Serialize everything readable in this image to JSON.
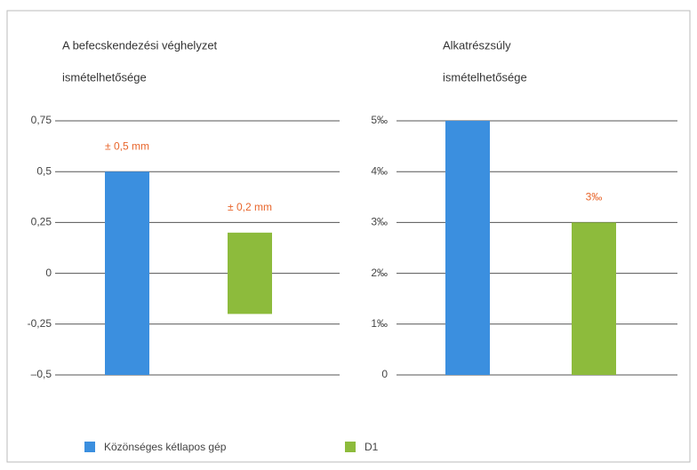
{
  "chart_data": [
    {
      "type": "bar",
      "symmetric": true,
      "title": [
        "A befecskendezési véghelyzet",
        "ismételhetősége"
      ],
      "series": [
        {
          "name": "Közönséges kétlapos gép",
          "color": "#3b8fdf",
          "values": [
            0.5
          ],
          "value_labels": [
            "± 0,5 mm"
          ]
        },
        {
          "name": "D1",
          "color": "#8dbb3c",
          "values": [
            0.2
          ],
          "value_labels": [
            "± 0,2 mm"
          ]
        }
      ],
      "ylim": [
        -0.5,
        0.75
      ],
      "yticks": [
        {
          "value": -0.5,
          "label": "–0,5"
        },
        {
          "value": -0.25,
          "label": "-0,25"
        },
        0,
        {
          "value": 0.25,
          "label": "0,25"
        },
        {
          "value": 0.5,
          "label": "0,5"
        },
        {
          "value": 0.75,
          "label": "0,75"
        }
      ],
      "grid": true
    },
    {
      "type": "bar",
      "title": [
        "Alkatrészsúly",
        "ismételhetősége"
      ],
      "series": [
        {
          "color": "#3b8fdf",
          "values": [
            5
          ]
        },
        {
          "color": "#8dbb3c",
          "values": [
            3
          ],
          "value_labels": [
            "3‰"
          ]
        }
      ],
      "ylim": [
        0,
        5
      ],
      "yticks": [
        0,
        {
          "value": 1,
          "label": "1‰"
        },
        {
          "value": 2,
          "label": "2‰"
        },
        {
          "value": 3,
          "label": "3‰"
        },
        {
          "value": 4,
          "label": "4‰"
        },
        {
          "value": 5,
          "label": "5‰"
        }
      ],
      "grid": true
    }
  ]
}
